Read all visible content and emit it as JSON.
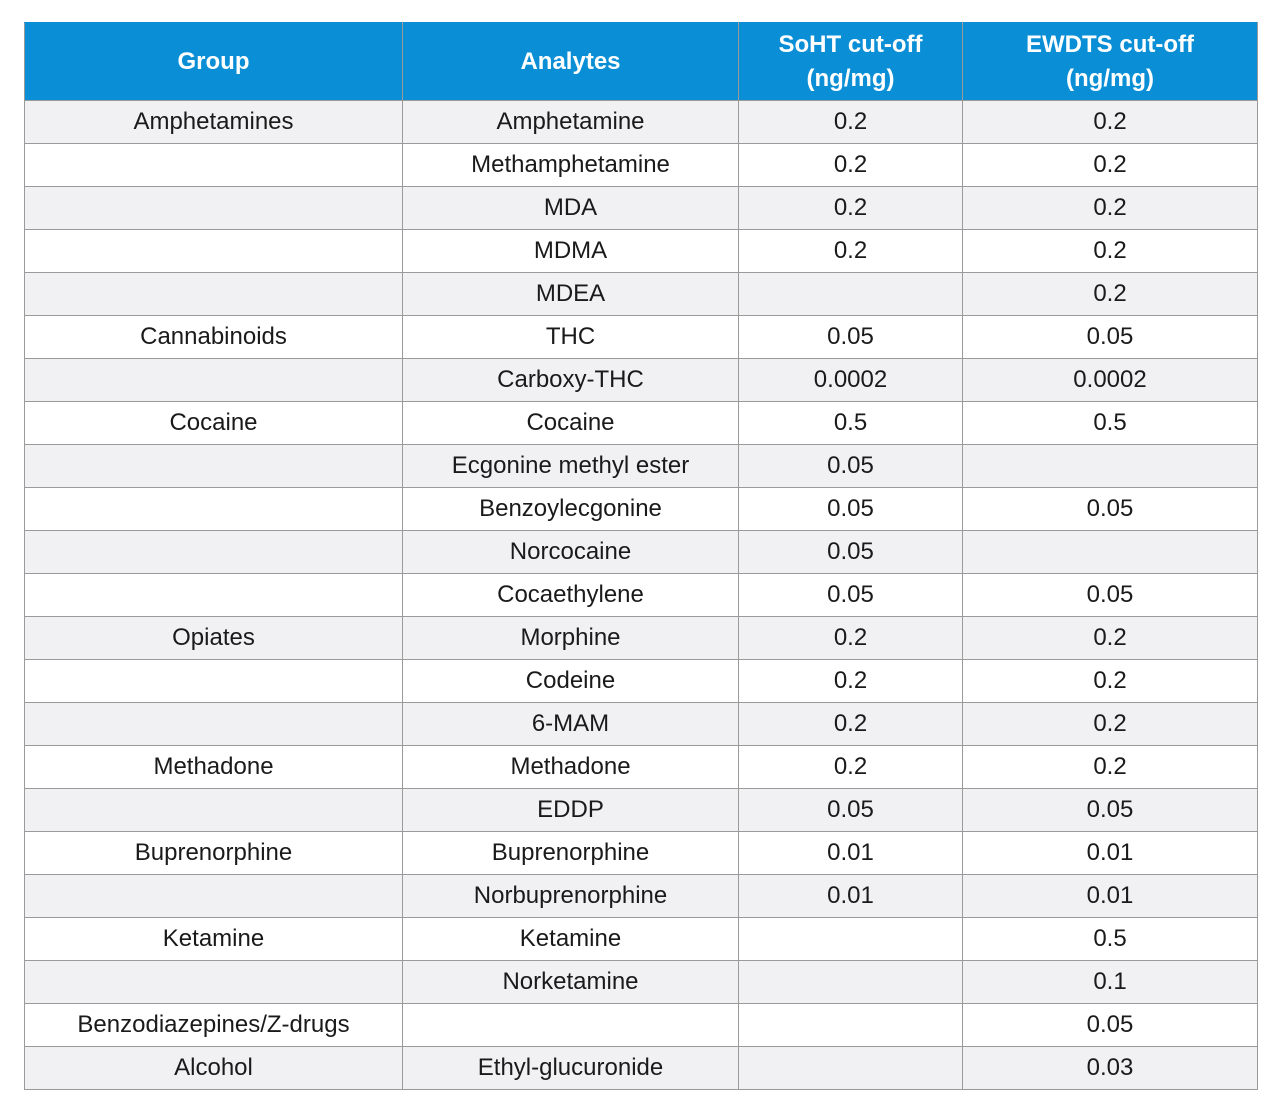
{
  "table": {
    "headers": {
      "group": "Group",
      "analytes": "Analytes",
      "soht_line1": "SoHT cut-off",
      "soht_line2": "(ng/mg)",
      "ewdts_line1": "EWDTS cut-off",
      "ewdts_line2": "(ng/mg)"
    },
    "header_color": "#0a8fd6",
    "stripe_color": "#f1f1f4",
    "rows": [
      {
        "group": "Amphetamines",
        "analyte": "Amphetamine",
        "soht": "0.2",
        "ewdts": "0.2"
      },
      {
        "group": "",
        "analyte": "Methamphetamine",
        "soht": "0.2",
        "ewdts": "0.2"
      },
      {
        "group": "",
        "analyte": "MDA",
        "soht": "0.2",
        "ewdts": "0.2"
      },
      {
        "group": "",
        "analyte": "MDMA",
        "soht": "0.2",
        "ewdts": "0.2"
      },
      {
        "group": "",
        "analyte": "MDEA",
        "soht": "",
        "ewdts": "0.2"
      },
      {
        "group": "Cannabinoids",
        "analyte": "THC",
        "soht": "0.05",
        "ewdts": "0.05"
      },
      {
        "group": "",
        "analyte": "Carboxy-THC",
        "soht": "0.0002",
        "ewdts": "0.0002"
      },
      {
        "group": "Cocaine",
        "analyte": "Cocaine",
        "soht": "0.5",
        "ewdts": "0.5"
      },
      {
        "group": "",
        "analyte": "Ecgonine methyl ester",
        "soht": "0.05",
        "ewdts": ""
      },
      {
        "group": "",
        "analyte": "Benzoylecgonine",
        "soht": "0.05",
        "ewdts": "0.05"
      },
      {
        "group": "",
        "analyte": "Norcocaine",
        "soht": "0.05",
        "ewdts": ""
      },
      {
        "group": "",
        "analyte": "Cocaethylene",
        "soht": "0.05",
        "ewdts": "0.05"
      },
      {
        "group": "Opiates",
        "analyte": "Morphine",
        "soht": "0.2",
        "ewdts": "0.2"
      },
      {
        "group": "",
        "analyte": "Codeine",
        "soht": "0.2",
        "ewdts": "0.2"
      },
      {
        "group": "",
        "analyte": "6-MAM",
        "soht": "0.2",
        "ewdts": "0.2"
      },
      {
        "group": "Methadone",
        "analyte": "Methadone",
        "soht": "0.2",
        "ewdts": "0.2"
      },
      {
        "group": "",
        "analyte": "EDDP",
        "soht": "0.05",
        "ewdts": "0.05"
      },
      {
        "group": "Buprenorphine",
        "analyte": "Buprenorphine",
        "soht": "0.01",
        "ewdts": "0.01"
      },
      {
        "group": "",
        "analyte": "Norbuprenorphine",
        "soht": "0.01",
        "ewdts": "0.01"
      },
      {
        "group": "Ketamine",
        "analyte": "Ketamine",
        "soht": "",
        "ewdts": "0.5"
      },
      {
        "group": "",
        "analyte": "Norketamine",
        "soht": "",
        "ewdts": "0.1"
      },
      {
        "group": "Benzodiazepines/Z-drugs",
        "analyte": "",
        "soht": "",
        "ewdts": "0.05"
      },
      {
        "group": "Alcohol",
        "analyte": "Ethyl-glucuronide",
        "soht": "",
        "ewdts": "0.03"
      }
    ]
  }
}
